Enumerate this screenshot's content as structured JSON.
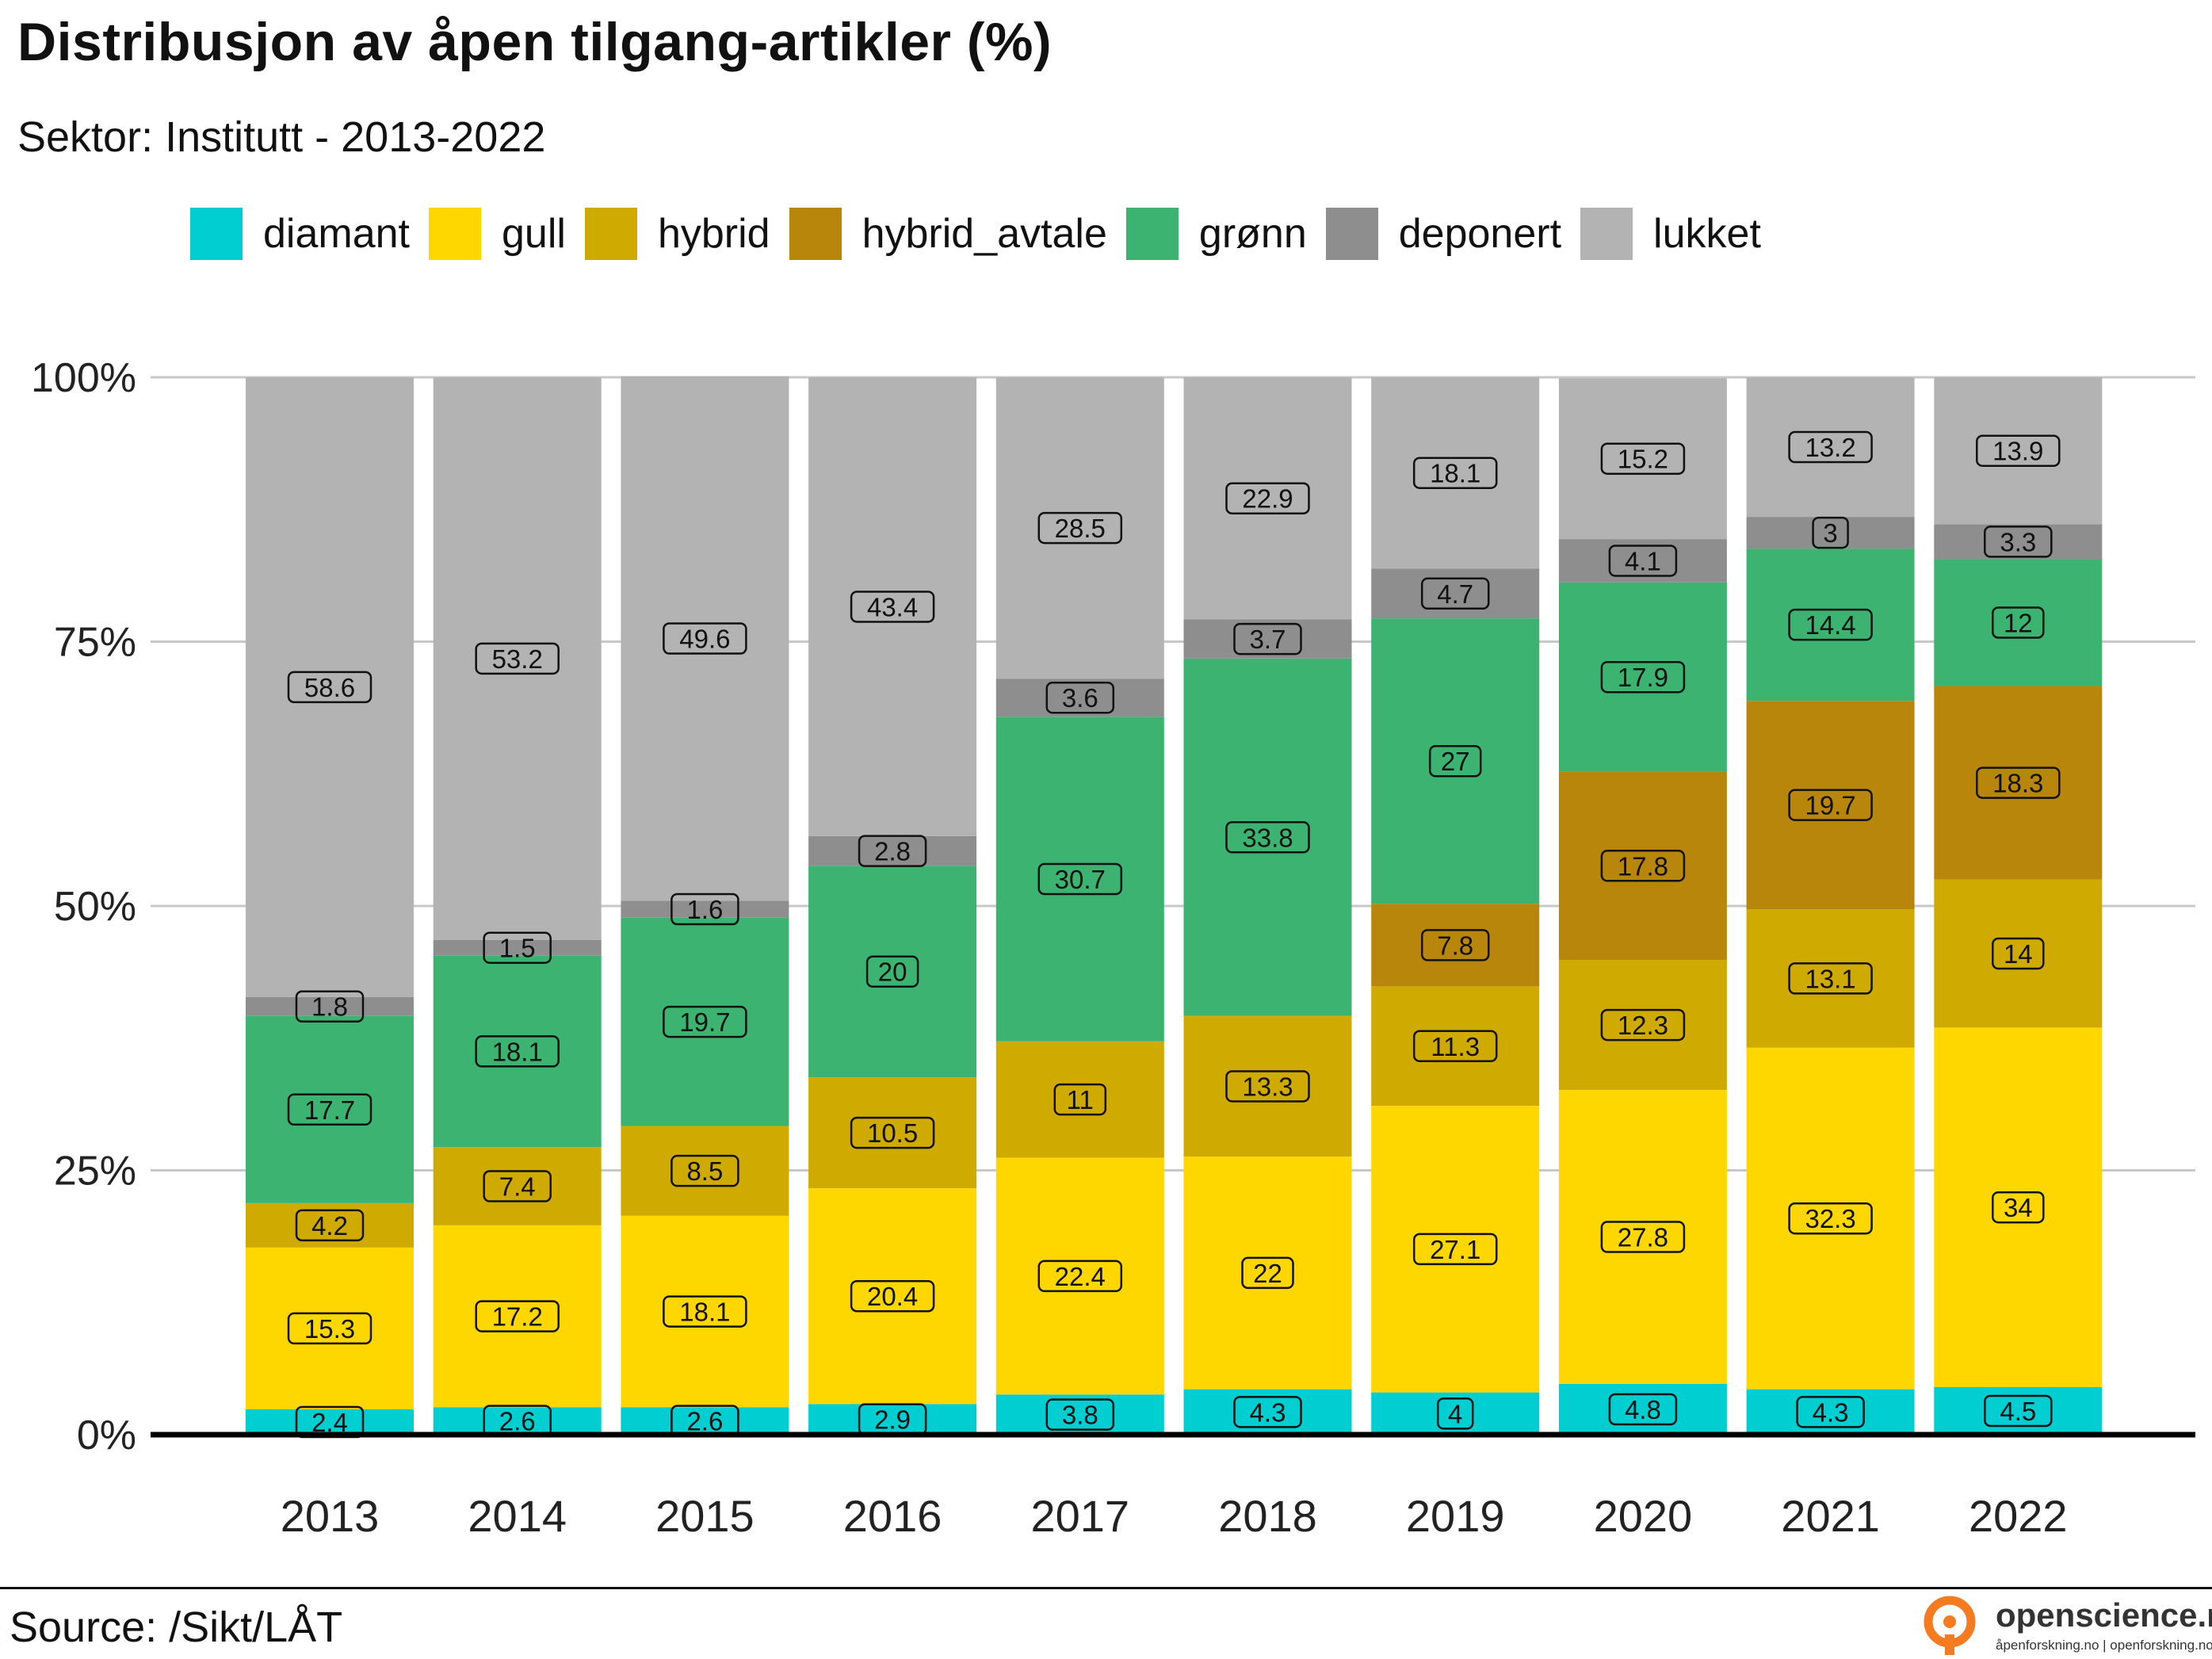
{
  "title": "Distribusjon av åpen tilgang-artikler (%)",
  "subtitle": "Sektor: Institutt - 2013-2022",
  "source": "Source: /Sikt/LÅT",
  "logo": {
    "name": "openscience.no",
    "sub": "åpenforskning.no | openforskning.no",
    "icon": "open-access-lock-icon",
    "color": "#f47b20"
  },
  "chart_data": {
    "type": "bar",
    "stacked": true,
    "categories": [
      "2013",
      "2014",
      "2015",
      "2016",
      "2017",
      "2018",
      "2019",
      "2020",
      "2021",
      "2022"
    ],
    "ylim": [
      0,
      100
    ],
    "yticks": [
      "0%",
      "25%",
      "50%",
      "75%",
      "100%"
    ],
    "grid": true,
    "legend_position": "top",
    "series": [
      {
        "name": "diamant",
        "color": "#00CED1",
        "values": [
          2.4,
          2.6,
          2.6,
          2.9,
          3.8,
          4.3,
          4,
          4.8,
          4.3,
          4.5
        ]
      },
      {
        "name": "gull",
        "color": "#FFD700",
        "values": [
          15.3,
          17.2,
          18.1,
          20.4,
          22.4,
          22,
          27.1,
          27.8,
          32.3,
          34
        ]
      },
      {
        "name": "hybrid",
        "color": "#CFAA00",
        "values": [
          4.2,
          7.4,
          8.5,
          10.5,
          11,
          13.3,
          11.3,
          12.3,
          13.1,
          14
        ]
      },
      {
        "name": "hybrid_avtale",
        "color": "#B8860B",
        "values": [
          0,
          0,
          0,
          0,
          0,
          0,
          7.8,
          17.8,
          19.7,
          18.3
        ]
      },
      {
        "name": "grønn",
        "color": "#3CB371",
        "values": [
          17.7,
          18.1,
          19.7,
          20,
          30.7,
          33.8,
          27,
          17.9,
          14.4,
          12
        ]
      },
      {
        "name": "deponert",
        "color": "#8E8E8E",
        "values": [
          1.8,
          1.5,
          1.6,
          2.8,
          3.6,
          3.7,
          4.7,
          4.1,
          3,
          3.3
        ]
      },
      {
        "name": "lukket",
        "color": "#B3B3B3",
        "values": [
          58.6,
          53.2,
          49.6,
          43.4,
          28.5,
          22.9,
          18.1,
          15.2,
          13.2,
          13.9
        ]
      }
    ]
  }
}
